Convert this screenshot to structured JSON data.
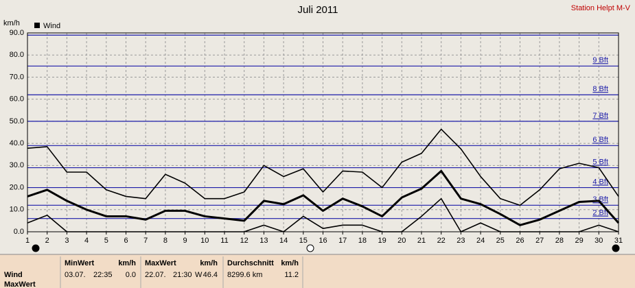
{
  "chart_data": {
    "type": "line",
    "title": "Juli 2011",
    "station": "Station Helpt M-V",
    "y_unit": "km/h",
    "x": [
      1,
      2,
      3,
      4,
      5,
      6,
      7,
      8,
      9,
      10,
      11,
      12,
      13,
      14,
      15,
      16,
      17,
      18,
      19,
      20,
      21,
      22,
      23,
      24,
      25,
      26,
      27,
      28,
      29,
      30,
      31
    ],
    "xlim": [
      1,
      31
    ],
    "xticks": [
      1,
      2,
      3,
      4,
      5,
      6,
      7,
      8,
      9,
      10,
      11,
      12,
      13,
      14,
      15,
      16,
      17,
      18,
      19,
      20,
      21,
      22,
      23,
      24,
      25,
      26,
      27,
      28,
      29,
      30,
      31
    ],
    "ylim": [
      0,
      90
    ],
    "yticks": [
      {
        "value": 0,
        "label": "0.0"
      },
      {
        "value": 10,
        "label": "10.0"
      },
      {
        "value": 20,
        "label": "20.0"
      },
      {
        "value": 30,
        "label": "30.0"
      },
      {
        "value": 40,
        "label": "40.0"
      },
      {
        "value": 50,
        "label": "50.0"
      },
      {
        "value": 60,
        "label": "60.0"
      },
      {
        "value": 70,
        "label": "70.0"
      },
      {
        "value": 80,
        "label": "80.0"
      },
      {
        "value": 90,
        "label": "90.0"
      }
    ],
    "grid": true,
    "bft_levels": [
      {
        "value": 6,
        "label": "2 Bft"
      },
      {
        "value": 12,
        "label": "3 Bft"
      },
      {
        "value": 20,
        "label": "4 Bft"
      },
      {
        "value": 29,
        "label": "5 Bft"
      },
      {
        "value": 39,
        "label": "6 Bft"
      },
      {
        "value": 50,
        "label": "7 Bft"
      },
      {
        "value": 62,
        "label": "8 Bft"
      },
      {
        "value": 75,
        "label": "9 Bft"
      },
      {
        "value": 89
      }
    ],
    "bft_color": "#1a1aa8",
    "series": [
      {
        "name": "Wind",
        "color": "#000000",
        "values": [
          16,
          19,
          14,
          10,
          7,
          7,
          5.5,
          9.5,
          9.5,
          7,
          6,
          5,
          14,
          12.5,
          16.5,
          9.5,
          15,
          11.5,
          7,
          15.5,
          19.5,
          27.5,
          15,
          12.5,
          8,
          3,
          5.5,
          9.5,
          13.5,
          14,
          4
        ]
      },
      {
        "color": "#000000",
        "values": [
          37.8,
          38.5,
          27,
          27,
          19,
          16,
          15,
          26,
          22,
          15,
          15,
          18,
          30,
          25,
          28.5,
          18,
          27.5,
          27,
          20,
          31.5,
          35.5,
          46.4,
          37.5,
          25,
          15,
          12,
          19,
          28.5,
          31,
          29,
          16
        ]
      },
      {
        "color": "#000000",
        "values": [
          4,
          7.5,
          0,
          0,
          0,
          0,
          0,
          0,
          0,
          0,
          0,
          0,
          3,
          0,
          7,
          1.5,
          3,
          3,
          0,
          0,
          7,
          15,
          0,
          4,
          0,
          0,
          0,
          0,
          0,
          3,
          0
        ]
      }
    ]
  },
  "stats": {
    "row_labels": [
      "Wind",
      "MaxWert"
    ],
    "columns": [
      {
        "header": "MinWert",
        "unit": "km/h",
        "date": "03.07.",
        "time": "22:35",
        "value": "0.0"
      },
      {
        "header": "MaxWert",
        "unit": "km/h",
        "date": "22.07.",
        "time": "21:30",
        "direction": "W",
        "value": "46.4"
      },
      {
        "header": "Durchschnitt",
        "unit": "km/h",
        "distance": "8299.6 km",
        "value": "11.2"
      }
    ]
  }
}
